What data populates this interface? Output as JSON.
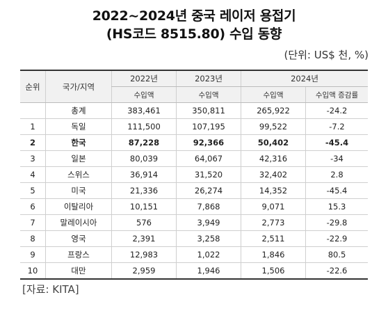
{
  "title_line1": "2022~2024년 중국 레이저 용접기",
  "title_line2": "(HS코드 8515.80) 수입 동향",
  "unit": "(단위: US$ 천, %)",
  "headers": {
    "rank": "순위",
    "country": "국가/지역",
    "y2022": "2022년",
    "y2023": "2023년",
    "y2024": "2024년",
    "import_amount": "수입액",
    "growth_rate": "수입액 증감률"
  },
  "rows": [
    {
      "rank": "",
      "country": "총계",
      "v2022": "383,461",
      "v2023": "350,811",
      "v2024": "265,922",
      "growth": "-24.2"
    },
    {
      "rank": "1",
      "country": "독일",
      "v2022": "111,500",
      "v2023": "107,195",
      "v2024": "99,522",
      "growth": "-7.2"
    },
    {
      "rank": "2",
      "country": "한국",
      "v2022": "87,228",
      "v2023": "92,366",
      "v2024": "50,402",
      "growth": "-45.4"
    },
    {
      "rank": "3",
      "country": "일본",
      "v2022": "80,039",
      "v2023": "64,067",
      "v2024": "42,316",
      "growth": "-34"
    },
    {
      "rank": "4",
      "country": "스위스",
      "v2022": "36,914",
      "v2023": "31,520",
      "v2024": "32,402",
      "growth": "2.8"
    },
    {
      "rank": "5",
      "country": "미국",
      "v2022": "21,336",
      "v2023": "26,274",
      "v2024": "14,352",
      "growth": "-45.4"
    },
    {
      "rank": "6",
      "country": "이탈리아",
      "v2022": "10,151",
      "v2023": "7,868",
      "v2024": "9,071",
      "growth": "15.3"
    },
    {
      "rank": "7",
      "country": "말레이시아",
      "v2022": "576",
      "v2023": "3,949",
      "v2024": "2,773",
      "growth": "-29.8"
    },
    {
      "rank": "8",
      "country": "영국",
      "v2022": "2,391",
      "v2023": "3,258",
      "v2024": "2,511",
      "growth": "-22.9"
    },
    {
      "rank": "9",
      "country": "프랑스",
      "v2022": "12,983",
      "v2023": "1,022",
      "v2024": "1,846",
      "growth": "80.5"
    },
    {
      "rank": "10",
      "country": "대만",
      "v2022": "2,959",
      "v2023": "1,946",
      "v2024": "1,506",
      "growth": "-22.6"
    }
  ],
  "source": "[자료: KITA]"
}
